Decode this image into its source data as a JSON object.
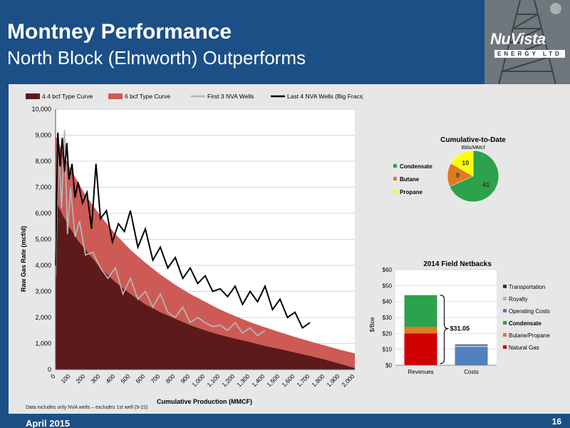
{
  "slide": {
    "title": "Montney Performance",
    "subtitle": "North Block (Elmworth) Outperforms",
    "logo_text": "NuVista",
    "logo_sub": "ENERGY LTD",
    "footnote": "Data includes only NVA wells – excludes 1st well (9-22)",
    "date": "April 2015",
    "page_number": "16"
  },
  "colors": {
    "header": "#1b4f86",
    "dark_red": "#5c1a1a",
    "light_red": "#cd5a55",
    "gray": "#b5b5b5",
    "black": "#000000",
    "green": "#2ca24d",
    "orange": "#e07a1f",
    "yellow": "#ffff00",
    "red": "#d00000",
    "blue": "#4f81bd"
  },
  "chart_data": [
    {
      "type": "line",
      "xlabel": "Cumulative Production (MMCF)",
      "ylabel": "Raw Gas Rate (mcf/d)",
      "xlim": [
        0,
        2000
      ],
      "ylim": [
        0,
        10000
      ],
      "x_ticks": [
        "0",
        "100",
        "200",
        "300",
        "400",
        "500",
        "600",
        "700",
        "800",
        "900",
        "1,000",
        "1,100",
        "1,200",
        "1,300",
        "1,400",
        "1,500",
        "1,600",
        "1,700",
        "1,800",
        "1,900",
        "2,000"
      ],
      "y_ticks": [
        "0",
        "1,000",
        "2,000",
        "3,000",
        "4,000",
        "5,000",
        "6,000",
        "7,000",
        "8,000",
        "9,000",
        "10,000"
      ],
      "legend_position": "top",
      "grid": true,
      "series": [
        {
          "name": "4.4 bcf Type Curve",
          "kind": "area",
          "x": [
            0,
            50,
            100,
            150,
            200,
            300,
            400,
            500,
            600,
            700,
            800,
            900,
            1000,
            1100,
            1200,
            1300,
            1400,
            1500,
            1600,
            1700,
            1800,
            1900,
            2000
          ],
          "y": [
            6500,
            5900,
            5400,
            4950,
            4600,
            3900,
            3350,
            2900,
            2500,
            2200,
            1950,
            1700,
            1500,
            1330,
            1180,
            1050,
            900,
            780,
            650,
            520,
            380,
            220,
            50
          ]
        },
        {
          "name": "6 bcf Type Curve",
          "kind": "area",
          "x": [
            0,
            50,
            100,
            150,
            200,
            300,
            400,
            500,
            600,
            700,
            800,
            900,
            1000,
            1100,
            1200,
            1300,
            1400,
            1500,
            1600,
            1700,
            1800,
            1900,
            2000
          ],
          "y": [
            9000,
            8300,
            7700,
            7200,
            6700,
            5900,
            5200,
            4600,
            4100,
            3650,
            3250,
            2900,
            2600,
            2300,
            2050,
            1820,
            1620,
            1430,
            1250,
            1080,
            920,
            760,
            620
          ]
        },
        {
          "name": "First 3 NVA Wells",
          "kind": "line",
          "x": [
            0,
            20,
            40,
            60,
            80,
            100,
            130,
            160,
            200,
            250,
            300,
            350,
            400,
            450,
            500,
            550,
            600,
            650,
            700,
            750,
            800,
            850,
            900,
            950,
            1000,
            1050,
            1100,
            1150,
            1200,
            1250,
            1300,
            1350,
            1400
          ],
          "y": [
            3500,
            8700,
            6200,
            9200,
            5200,
            7000,
            5100,
            5700,
            4400,
            4500,
            3900,
            3500,
            3900,
            2900,
            3500,
            2700,
            3000,
            2400,
            2900,
            2200,
            2000,
            2400,
            1800,
            2000,
            1800,
            1650,
            1700,
            1500,
            1800,
            1400,
            1600,
            1300,
            1500
          ]
        },
        {
          "name": "Last 4 NVA Wells (Big Fracs)",
          "kind": "line",
          "x": [
            0,
            15,
            30,
            45,
            60,
            75,
            90,
            110,
            130,
            150,
            180,
            210,
            240,
            270,
            300,
            340,
            380,
            420,
            460,
            500,
            550,
            600,
            650,
            700,
            750,
            800,
            850,
            900,
            950,
            1000,
            1050,
            1100,
            1150,
            1200,
            1250,
            1300,
            1350,
            1400,
            1450,
            1500,
            1550,
            1600,
            1650,
            1700
          ],
          "y": [
            4000,
            9100,
            7800,
            8900,
            7600,
            8700,
            7300,
            7900,
            6600,
            7200,
            6400,
            6800,
            5400,
            7900,
            5800,
            6100,
            4900,
            5600,
            5300,
            6100,
            4700,
            5400,
            4200,
            4700,
            3900,
            4300,
            3500,
            3900,
            3300,
            3600,
            3000,
            3100,
            2800,
            3200,
            2500,
            3000,
            2600,
            3200,
            2300,
            2700,
            2000,
            2200,
            1600,
            1800
          ]
        }
      ]
    },
    {
      "type": "pie",
      "title": "Cumulative-to-Date",
      "subtitle": "Bbls/MMcf",
      "categories": [
        "Condensate",
        "Butane",
        "Propane"
      ],
      "values": [
        41,
        9,
        10
      ],
      "legend_position": "left"
    },
    {
      "type": "bar",
      "title": "2014 Field Netbacks",
      "ylabel": "$/Boe",
      "categories": [
        "Revenues",
        "Costs"
      ],
      "ylim": [
        0,
        60
      ],
      "y_ticks": [
        "$0",
        "$10",
        "$20",
        "$30",
        "$40",
        "$50",
        "$60"
      ],
      "stacked": true,
      "series": [
        {
          "name": "Natural Gas",
          "values": [
            20,
            0
          ]
        },
        {
          "name": "Butane/Propane",
          "values": [
            4,
            0
          ]
        },
        {
          "name": "Condensate",
          "values": [
            20,
            0
          ]
        },
        {
          "name": "Operating Costs",
          "values": [
            0,
            11.5
          ]
        },
        {
          "name": "Royalty",
          "values": [
            0,
            1
          ]
        },
        {
          "name": "Transportation",
          "values": [
            0,
            0.5
          ]
        }
      ],
      "annotation": "$31.05",
      "legend_order": [
        "Transportation",
        "Royalty",
        "Operating Costs",
        "Condensate",
        "Butane/Propane",
        "Natural Gas"
      ],
      "legend_position": "right"
    }
  ]
}
